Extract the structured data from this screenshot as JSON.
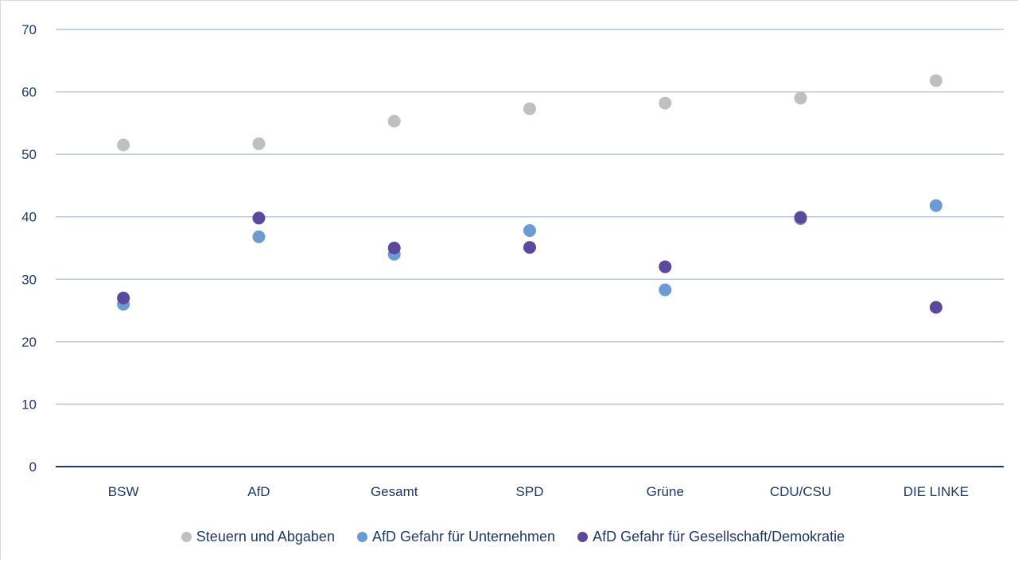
{
  "chart_data": {
    "type": "scatter",
    "categories": [
      "BSW",
      "AfD",
      "Gesamt",
      "SPD",
      "Grüne",
      "CDU/CSU",
      "DIE LINKE"
    ],
    "series": [
      {
        "name": "Steuern und Abgaben",
        "color": "#c0c0c0",
        "values": [
          51.5,
          51.7,
          55.3,
          57.3,
          58.2,
          59.0,
          61.8
        ]
      },
      {
        "name": "AfD Gefahr für Unternehmen",
        "color": "#6a9bd3",
        "values": [
          26.0,
          36.8,
          34.0,
          37.8,
          28.3,
          39.7,
          41.8
        ]
      },
      {
        "name": "AfD Gefahr für Gesellschaft/Demokratie",
        "color": "#5b4a9b",
        "values": [
          27.0,
          39.8,
          35.0,
          35.1,
          32.0,
          39.9,
          25.5
        ]
      }
    ],
    "yticks": [
      0,
      10,
      20,
      30,
      40,
      50,
      60,
      70
    ],
    "ylim": [
      0,
      70
    ],
    "grid": true,
    "legend_position": "bottom"
  }
}
